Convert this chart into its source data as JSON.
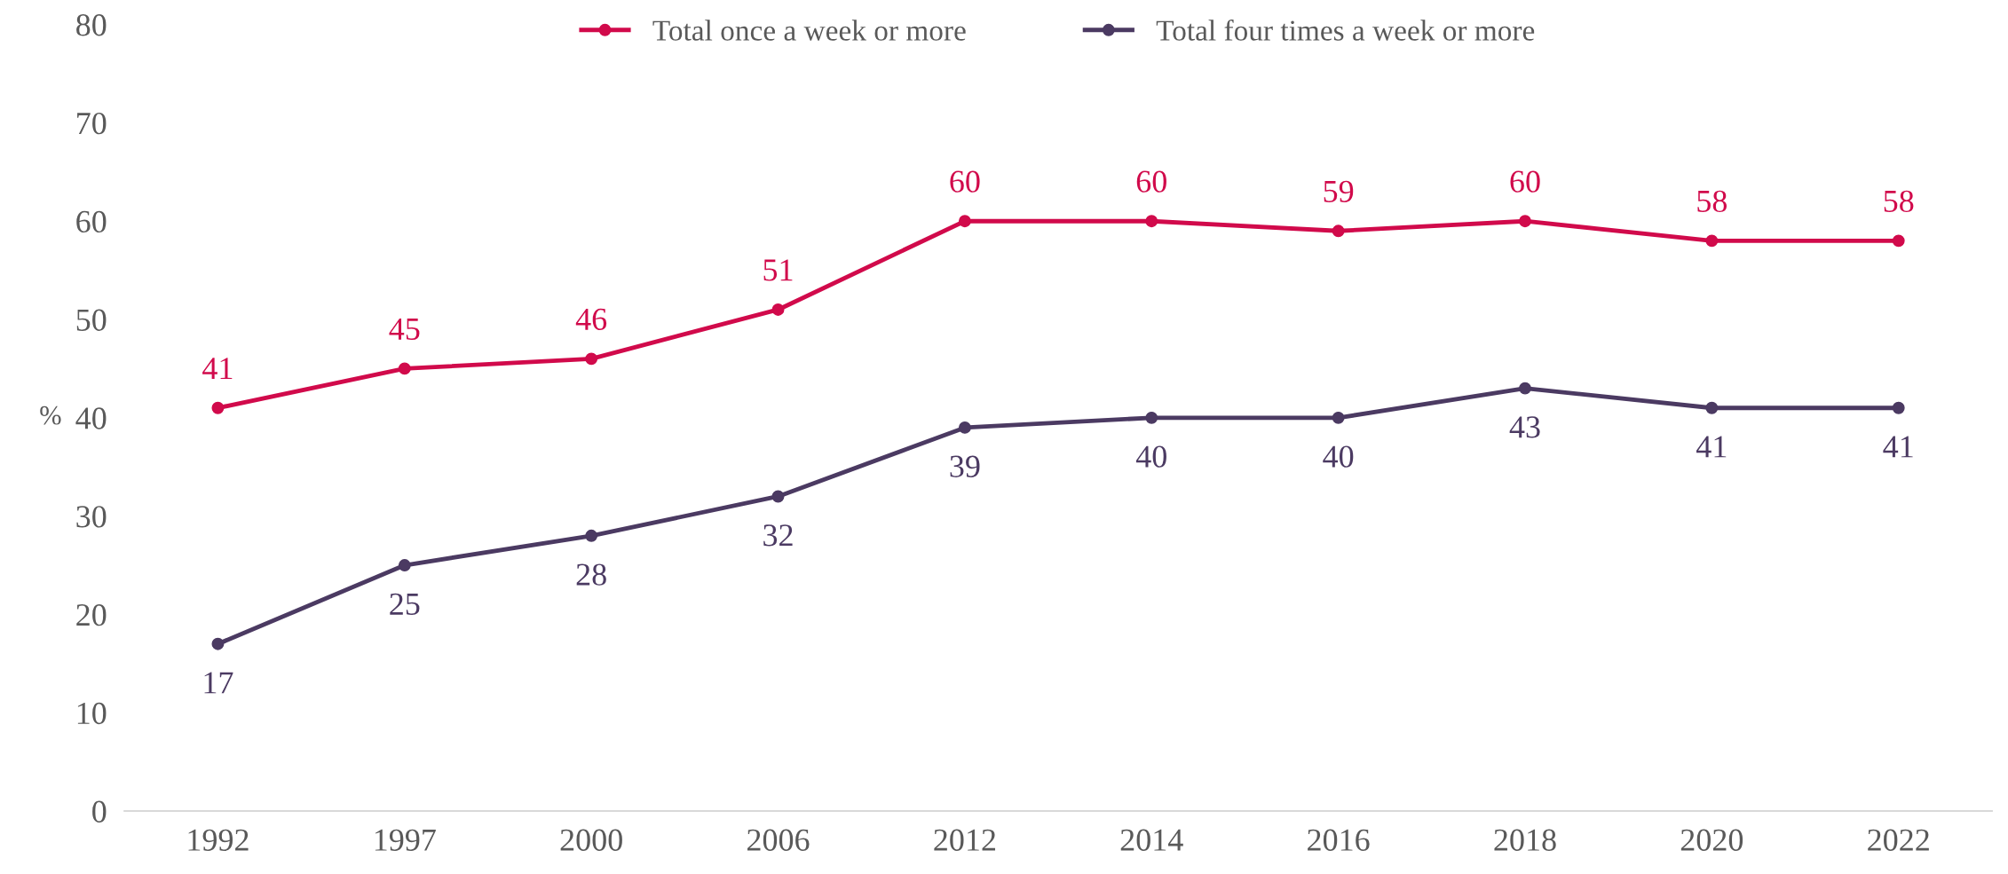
{
  "chart_data": {
    "type": "line",
    "ylabel": "%",
    "categories": [
      "1992",
      "1997",
      "2000",
      "2006",
      "2012",
      "2014",
      "2016",
      "2018",
      "2020",
      "2022"
    ],
    "series": [
      {
        "name": "Total once a week or more",
        "color": "#d10a4b",
        "values": [
          41,
          45,
          46,
          51,
          60,
          60,
          59,
          60,
          58,
          58
        ]
      },
      {
        "name": "Total four times a week or more",
        "color": "#4b3a62",
        "values": [
          17,
          25,
          28,
          32,
          39,
          40,
          40,
          43,
          41,
          41
        ]
      }
    ],
    "ylim": [
      0,
      80
    ],
    "yticks": [
      0,
      10,
      20,
      30,
      40,
      50,
      60,
      70,
      80
    ],
    "grid": false,
    "legend": "top",
    "marker": "circle",
    "line_style": "solid",
    "data_labels": true
  }
}
